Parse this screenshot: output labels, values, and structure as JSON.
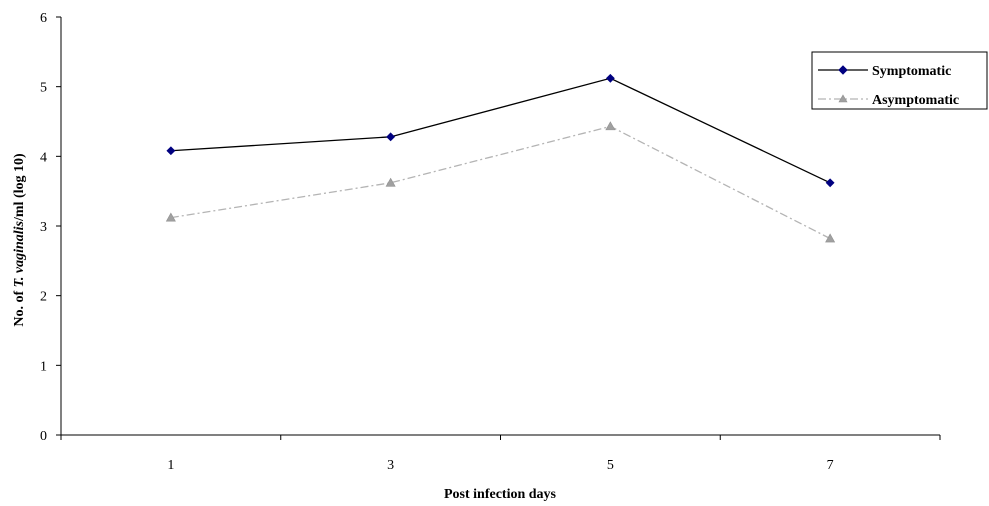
{
  "chart_data": {
    "type": "line",
    "title": "",
    "xlabel": "Post infection days",
    "ylabel_parts": [
      "No. of ",
      "T. vaginalis",
      "/ml (log 10)"
    ],
    "categories": [
      "1",
      "3",
      "5",
      "7"
    ],
    "ylim": [
      0,
      6
    ],
    "yticks": [
      "0",
      "1",
      "2",
      "3",
      "4",
      "5",
      "6"
    ],
    "grid": false,
    "legend_position": "top-right",
    "series": [
      {
        "name": "Symptomatic",
        "values": [
          4.08,
          4.28,
          5.12,
          3.62
        ],
        "color": "#000080",
        "line_color": "#000000",
        "marker": "diamond",
        "line_style": "solid"
      },
      {
        "name": "Asymptomatic",
        "values": [
          3.12,
          3.62,
          4.43,
          2.82
        ],
        "color": "#a0a0a0",
        "line_color": "#b4b4b4",
        "marker": "triangle",
        "line_style": "dash-dot"
      }
    ]
  }
}
